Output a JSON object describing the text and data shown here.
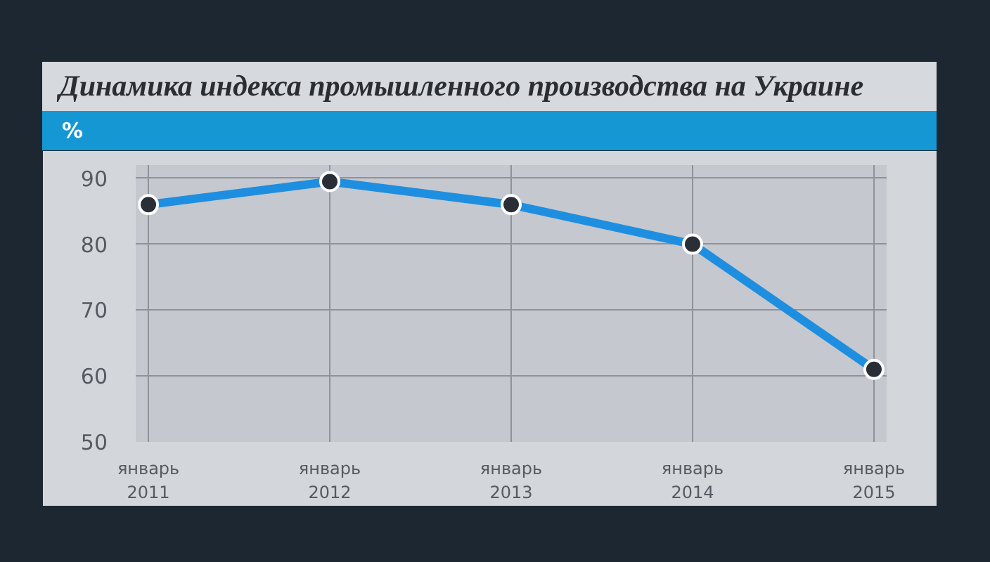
{
  "chart_data": {
    "type": "line",
    "title": "Динамика индекса промышленного производства на Украине",
    "ylabel": "%",
    "categories": [
      "январь\n2011",
      "январь\n2012",
      "январь\n2013",
      "январь\n2014",
      "январь\n2015"
    ],
    "series": [
      {
        "color": "#1e8fe0",
        "values": [
          86,
          89.5,
          86,
          80,
          61
        ]
      }
    ],
    "ylim": [
      50,
      92
    ],
    "yticks": [
      50,
      60,
      70,
      80,
      90
    ],
    "grid": true,
    "marker": "circle",
    "line_style": "solid"
  }
}
